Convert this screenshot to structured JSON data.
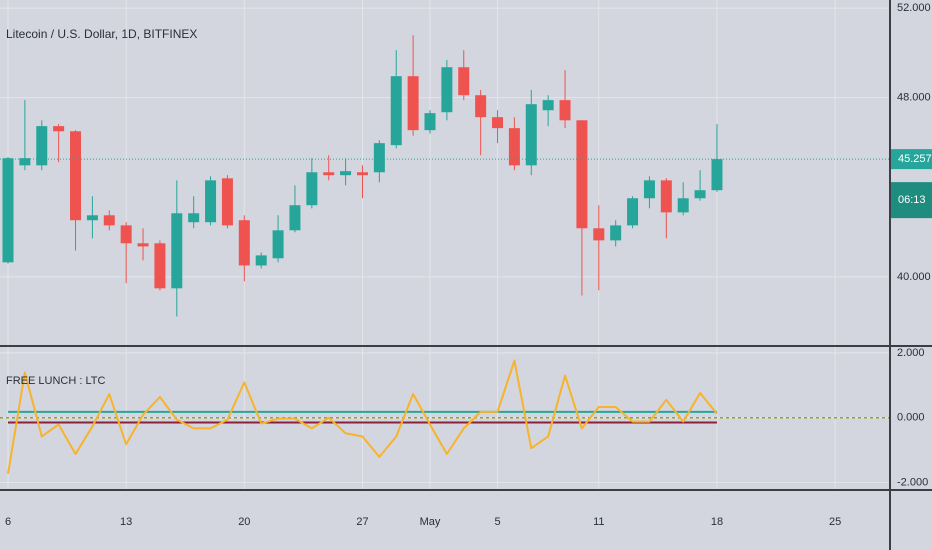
{
  "chart_data": [
    {
      "type": "candlestick",
      "title": "Litecoin / U.S. Dollar, 1D, BITFINEX",
      "up_color": "#26a69a",
      "down_color": "#ef5350",
      "open": [
        40.65,
        44.98,
        44.98,
        46.73,
        46.5,
        42.53,
        42.75,
        42.3,
        41.5,
        41.5,
        39.49,
        42.44,
        42.44,
        44.4,
        42.53,
        40.51,
        40.83,
        42.08,
        43.2,
        44.67,
        44.54,
        44.67,
        44.67,
        45.88,
        48.96,
        46.55,
        47.35,
        49.36,
        48.11,
        47.13,
        46.64,
        44.98,
        47.44,
        47.89,
        46.99,
        42.17,
        41.63,
        42.3,
        43.51,
        44.31,
        42.88,
        43.51,
        43.87,
        null,
        null,
        null,
        null,
        null,
        null,
        null
      ],
      "high": [
        45.35,
        47.89,
        46.99,
        46.82,
        46.55,
        43.6,
        42.97,
        42.44,
        42.17,
        41.63,
        44.31,
        43.6,
        44.49,
        44.54,
        42.75,
        41.09,
        42.75,
        44.09,
        45.3,
        45.43,
        45.3,
        44.98,
        46.1,
        50.12,
        50.79,
        47.44,
        49.68,
        50.12,
        48.34,
        47.44,
        47.13,
        48.34,
        48.11,
        49.23,
        46.99,
        43.2,
        42.53,
        43.6,
        44.49,
        44.4,
        44.22,
        44.76,
        46.82,
        null,
        null,
        null,
        null,
        null,
        null,
        null
      ],
      "low": [
        40.6,
        44.76,
        44.76,
        45.12,
        41.18,
        41.72,
        42.08,
        39.71,
        40.74,
        39.4,
        38.23,
        42.17,
        42.3,
        42.17,
        39.8,
        40.38,
        40.65,
        41.99,
        43.06,
        44.31,
        44.09,
        43.51,
        44.22,
        45.74,
        46.3,
        46.4,
        46.99,
        47.89,
        45.43,
        45.97,
        44.76,
        44.54,
        46.73,
        46.64,
        39.17,
        39.4,
        41.36,
        42.17,
        43.06,
        41.72,
        42.75,
        43.4,
        43.8,
        null,
        null,
        null,
        null,
        null,
        null,
        null
      ],
      "close": [
        45.3,
        45.3,
        46.73,
        46.5,
        42.53,
        42.75,
        42.3,
        41.5,
        41.36,
        39.49,
        42.84,
        42.84,
        44.31,
        42.3,
        40.51,
        40.96,
        42.08,
        43.2,
        44.67,
        44.54,
        44.72,
        44.54,
        45.97,
        48.96,
        46.55,
        47.31,
        49.36,
        48.11,
        47.13,
        46.64,
        44.98,
        47.71,
        47.89,
        46.99,
        42.17,
        41.63,
        42.3,
        43.51,
        44.31,
        42.88,
        43.51,
        43.87,
        45.257,
        null,
        null,
        null,
        null,
        null,
        null,
        null
      ],
      "ylim": [
        36.96,
        52.36
      ],
      "yticks": [
        {
          "value": 52,
          "label": "52.000"
        },
        {
          "value": 48,
          "label": "48.000"
        },
        {
          "value": 40,
          "label": "40.000"
        }
      ],
      "last_price": {
        "value": 45.257,
        "label": "45.257"
      },
      "countdown": "06:13",
      "grid": true
    },
    {
      "type": "line",
      "title": "FREE LUNCH : LTC",
      "categories": [
        "6",
        null,
        null,
        null,
        null,
        null,
        null,
        "13",
        null,
        null,
        null,
        null,
        null,
        null,
        "20",
        null,
        null,
        null,
        null,
        null,
        null,
        "27",
        null,
        null,
        null,
        "May",
        null,
        null,
        null,
        "5",
        null,
        null,
        null,
        null,
        null,
        "11",
        null,
        null,
        null,
        null,
        null,
        null,
        "18",
        null,
        null,
        null,
        null,
        null,
        null,
        "25"
      ],
      "series": [
        {
          "color": "#26a69a",
          "values": [
            0.18,
            0.18,
            0.18,
            0.18,
            0.18,
            0.18,
            0.18,
            0.18,
            0.18,
            0.18,
            0.18,
            0.18,
            0.18,
            0.18,
            0.18,
            0.18,
            0.18,
            0.18,
            0.18,
            0.18,
            0.18,
            0.18,
            0.18,
            0.18,
            0.18,
            0.18,
            0.18,
            0.18,
            0.18,
            0.18,
            0.18,
            0.18,
            0.18,
            0.18,
            0.18,
            0.18,
            0.18,
            0.18,
            0.18,
            0.18,
            0.18,
            0.18,
            0.18,
            null,
            null,
            null,
            null,
            null,
            null,
            null
          ]
        },
        {
          "color": "#8e1f3e",
          "values": [
            -0.15,
            -0.15,
            -0.15,
            -0.15,
            -0.15,
            -0.15,
            -0.15,
            -0.15,
            -0.15,
            -0.15,
            -0.15,
            -0.15,
            -0.15,
            -0.15,
            -0.15,
            -0.15,
            -0.15,
            -0.15,
            -0.15,
            -0.15,
            -0.15,
            -0.15,
            -0.15,
            -0.15,
            -0.15,
            -0.15,
            -0.15,
            -0.15,
            -0.15,
            -0.15,
            -0.15,
            -0.15,
            -0.15,
            -0.15,
            -0.15,
            -0.15,
            -0.15,
            -0.15,
            -0.15,
            -0.15,
            -0.15,
            -0.15,
            -0.15,
            null,
            null,
            null,
            null,
            null,
            null,
            null
          ]
        },
        {
          "color": "#f7b32b",
          "values": [
            -1.73,
            1.39,
            -0.58,
            -0.21,
            -1.12,
            -0.27,
            0.73,
            -0.82,
            0.09,
            0.64,
            -0.06,
            -0.33,
            -0.33,
            -0.06,
            1.09,
            -0.18,
            -0.03,
            -0.03,
            -0.33,
            0.0,
            -0.48,
            -0.58,
            -1.21,
            -0.58,
            0.73,
            -0.21,
            -1.12,
            -0.33,
            0.18,
            0.18,
            1.76,
            -0.94,
            -0.58,
            1.3,
            -0.33,
            0.33,
            0.33,
            -0.12,
            -0.12,
            0.55,
            -0.12,
            0.76,
            0.12,
            null,
            null,
            null,
            null,
            null,
            null,
            null
          ]
        }
      ],
      "hline": 0,
      "ylim": [
        -2.2,
        2.15
      ],
      "yticks": [
        {
          "value": 2,
          "label": "2.000"
        },
        {
          "value": 0,
          "label": "0.000"
        },
        {
          "value": -2,
          "label": "-2.000"
        }
      ],
      "grid": true
    }
  ]
}
